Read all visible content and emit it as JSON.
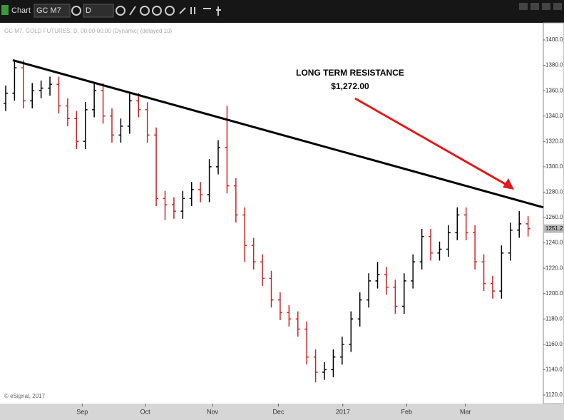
{
  "toolbar": {
    "app": "Chart",
    "symbol": "GC M7",
    "interval": "D"
  },
  "chart_data": {
    "type": "ohlc",
    "subtitle": "GC M7, GOLD FUTURES, D, 00:00-00:00 (Dynamic) (delayed 10)",
    "credit": "© eSignal, 2017",
    "annotation": {
      "title": "LONG TERM RESISTANCE",
      "price": "$1,272.00"
    },
    "up_color": "#000000",
    "down_color": "#d81e1e",
    "trendline_color": "#000000",
    "arrow_color": "#e01b1b",
    "xlim": [
      -0.4,
      60.72
    ],
    "ylim": [
      1120,
      1400
    ],
    "yticks": [
      {
        "value": 1120,
        "label": "1120.0"
      },
      {
        "value": 1140,
        "label": "1140.0"
      },
      {
        "value": 1160,
        "label": "1160.0"
      },
      {
        "value": 1180,
        "label": "1180.0"
      },
      {
        "value": 1200,
        "label": "1200.0"
      },
      {
        "value": 1220,
        "label": "1220.0"
      },
      {
        "value": 1240,
        "label": "1240.0"
      },
      {
        "value": 1260,
        "label": "1260.0"
      },
      {
        "value": 1280,
        "label": "1280.0"
      },
      {
        "value": 1300,
        "label": "1300.0"
      },
      {
        "value": 1320,
        "label": "1320.0"
      },
      {
        "value": 1340,
        "label": "1340.0"
      },
      {
        "value": 1360,
        "label": "1360.0"
      },
      {
        "value": 1380,
        "label": "1380.0"
      },
      {
        "value": 1400,
        "label": "1400.0"
      }
    ],
    "xticks": [
      {
        "value": 8.64,
        "label": "Sep"
      },
      {
        "value": 15.76,
        "label": "Oct"
      },
      {
        "value": 23.36,
        "label": "Nov"
      },
      {
        "value": 30.8,
        "label": "Dec"
      },
      {
        "value": 38.08,
        "label": "2017"
      },
      {
        "value": 45.28,
        "label": "Feb"
      },
      {
        "value": 51.92,
        "label": "Mar"
      }
    ],
    "last_price": 1251.2,
    "trendline": {
      "x": [
        0.8,
        60.72
      ],
      "y": [
        1384,
        1268
      ]
    },
    "open": [
      1350,
      1358,
      1378,
      1352,
      1360,
      1362,
      1365,
      1348,
      1338,
      1320,
      1345,
      1360,
      1340,
      1325,
      1332,
      1352,
      1345,
      1325,
      1275,
      1270,
      1265,
      1275,
      1282,
      1278,
      1300,
      1315,
      1285,
      1262,
      1238,
      1225,
      1212,
      1195,
      1185,
      1180,
      1172,
      1150,
      1138,
      1140,
      1150,
      1160,
      1180,
      1195,
      1210,
      1215,
      1205,
      1190,
      1210,
      1225,
      1245,
      1232,
      1235,
      1248,
      1262,
      1248,
      1225,
      1208,
      1202,
      1232,
      1250,
      1255
    ],
    "high": [
      1364,
      1384,
      1384,
      1366,
      1368,
      1371,
      1371,
      1354,
      1344,
      1351,
      1366,
      1366,
      1346,
      1338,
      1358,
      1358,
      1351,
      1331,
      1281,
      1276,
      1281,
      1288,
      1288,
      1306,
      1321,
      1348,
      1291,
      1268,
      1244,
      1231,
      1218,
      1201,
      1191,
      1186,
      1178,
      1156,
      1146,
      1156,
      1166,
      1186,
      1201,
      1216,
      1225,
      1221,
      1211,
      1216,
      1231,
      1251,
      1251,
      1241,
      1254,
      1268,
      1268,
      1254,
      1231,
      1214,
      1238,
      1256,
      1265,
      1261
    ],
    "low": [
      1344,
      1352,
      1346,
      1346,
      1354,
      1356,
      1342,
      1332,
      1314,
      1314,
      1339,
      1334,
      1319,
      1319,
      1326,
      1339,
      1319,
      1269,
      1258,
      1259,
      1259,
      1269,
      1272,
      1272,
      1294,
      1279,
      1256,
      1225,
      1219,
      1206,
      1189,
      1179,
      1174,
      1166,
      1144,
      1130,
      1132,
      1134,
      1144,
      1154,
      1174,
      1189,
      1204,
      1199,
      1184,
      1184,
      1204,
      1219,
      1226,
      1226,
      1229,
      1242,
      1242,
      1219,
      1202,
      1196,
      1196,
      1226,
      1244,
      1245
    ],
    "close": [
      1358,
      1378,
      1352,
      1360,
      1362,
      1365,
      1348,
      1338,
      1320,
      1345,
      1360,
      1340,
      1325,
      1332,
      1352,
      1345,
      1325,
      1275,
      1270,
      1265,
      1275,
      1282,
      1278,
      1300,
      1315,
      1285,
      1262,
      1238,
      1225,
      1212,
      1195,
      1185,
      1180,
      1172,
      1150,
      1138,
      1140,
      1150,
      1160,
      1180,
      1195,
      1210,
      1215,
      1205,
      1190,
      1210,
      1225,
      1245,
      1232,
      1235,
      1248,
      1262,
      1248,
      1225,
      1208,
      1202,
      1232,
      1250,
      1255,
      1251.2
    ]
  }
}
